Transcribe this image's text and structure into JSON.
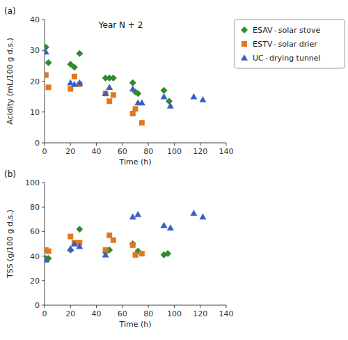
{
  "chart_data": [
    {
      "type": "scatter",
      "title": "Year N + 2",
      "annotations": [
        "(a)"
      ],
      "x_label": "Time (h)",
      "y_label": "Acidity (mL/100 g d.s.)",
      "xlim": [
        0,
        140
      ],
      "ylim": [
        0,
        40
      ],
      "xticks": [
        0,
        20,
        40,
        60,
        80,
        100,
        120,
        140
      ],
      "yticks": [
        0,
        10,
        20,
        30,
        40
      ],
      "grid": false,
      "legend": "right",
      "series": [
        {
          "name": "ESAV - solar stove",
          "color": "#2e8b2e",
          "marker": "diamond",
          "x": [
            1,
            3,
            20,
            23,
            27,
            47,
            50,
            53,
            68,
            70,
            72,
            92,
            96
          ],
          "values": [
            31,
            26,
            25.5,
            24.5,
            29,
            21,
            21,
            21,
            19.5,
            16.5,
            16,
            17,
            13.5
          ]
        },
        {
          "name": "ESTV - solar drier",
          "color": "#e07820",
          "marker": "square",
          "x": [
            1,
            3,
            20,
            23,
            27,
            47,
            50,
            53,
            68,
            70,
            75
          ],
          "values": [
            22,
            18,
            17.5,
            21.5,
            19,
            16,
            13.5,
            15.5,
            9.5,
            11,
            6.5
          ]
        },
        {
          "name": "UC - drying tunnel",
          "color": "#3a5fc8",
          "marker": "triangle",
          "x": [
            1,
            20,
            23,
            27,
            47,
            50,
            68,
            72,
            75,
            92,
            97,
            115,
            122
          ],
          "values": [
            29.5,
            19.5,
            19,
            19.5,
            16,
            18,
            17.5,
            13,
            13,
            15,
            12,
            15,
            14
          ]
        }
      ]
    },
    {
      "type": "scatter",
      "annotations": [
        "(b)"
      ],
      "x_label": "Time (h)",
      "y_label": "TSS (g/100 g d.s.)",
      "xlim": [
        0,
        140
      ],
      "ylim": [
        0,
        100
      ],
      "xticks": [
        0,
        20,
        40,
        60,
        80,
        100,
        120,
        140
      ],
      "yticks": [
        0,
        20,
        40,
        60,
        80,
        100
      ],
      "grid": false,
      "legend": false,
      "series": [
        {
          "name": "ESAV - solar stove",
          "color": "#2e8b2e",
          "marker": "diamond",
          "x": [
            1,
            3,
            20,
            27,
            47,
            50,
            68,
            72,
            92,
            95
          ],
          "values": [
            38,
            38,
            45,
            62,
            43,
            45,
            50,
            44,
            41,
            42
          ]
        },
        {
          "name": "ESTV - solar drier",
          "color": "#e07820",
          "marker": "square",
          "x": [
            1,
            3,
            20,
            23,
            27,
            47,
            50,
            53,
            68,
            70,
            75
          ],
          "values": [
            45,
            44,
            56,
            51,
            51,
            45,
            57,
            53,
            49,
            41,
            42
          ]
        },
        {
          "name": "UC - drying tunnel",
          "color": "#3a5fc8",
          "marker": "triangle",
          "x": [
            1,
            20,
            23,
            27,
            47,
            68,
            72,
            92,
            97,
            115,
            122
          ],
          "values": [
            37,
            46,
            50,
            48,
            41,
            72,
            74,
            65,
            63,
            75,
            72
          ]
        }
      ]
    }
  ]
}
